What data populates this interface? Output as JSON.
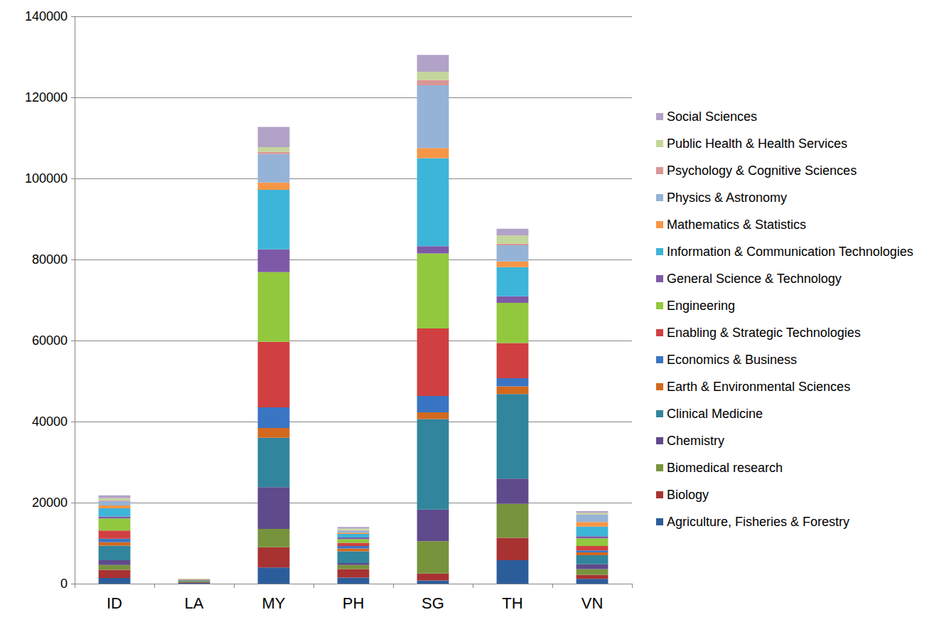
{
  "chart_data": {
    "type": "bar",
    "stacked": true,
    "grid": true,
    "legend": "right",
    "categories": [
      "ID",
      "LA",
      "MY",
      "PH",
      "SG",
      "TH",
      "VN"
    ],
    "ylim": [
      0,
      140000
    ],
    "yticks": [
      0,
      20000,
      40000,
      60000,
      80000,
      100000,
      120000,
      140000
    ],
    "series": [
      {
        "name": "Agriculture, Fisheries & Forestry",
        "color": "#2c5d9b",
        "values": [
          1400,
          200,
          4000,
          1500,
          800,
          5800,
          1200
        ]
      },
      {
        "name": "Biology",
        "color": "#a83232",
        "values": [
          2000,
          150,
          5000,
          2100,
          1700,
          5500,
          1000
        ]
      },
      {
        "name": "Biomedical research",
        "color": "#77933c",
        "values": [
          1200,
          200,
          4500,
          1000,
          8000,
          8400,
          1400
        ]
      },
      {
        "name": "Chemistry",
        "color": "#5f4a8b",
        "values": [
          1200,
          50,
          10300,
          500,
          7800,
          6200,
          1200
        ]
      },
      {
        "name": "Clinical Medicine",
        "color": "#31859c",
        "values": [
          3600,
          250,
          12200,
          2900,
          22300,
          20900,
          2200
        ]
      },
      {
        "name": "Earth & Environmental Sciences",
        "color": "#d2691e",
        "values": [
          800,
          50,
          2400,
          700,
          1700,
          1900,
          700
        ]
      },
      {
        "name": "Economics & Business",
        "color": "#3a75c4",
        "values": [
          900,
          50,
          5100,
          600,
          4000,
          2000,
          500
        ]
      },
      {
        "name": "Enabling & Strategic Technologies",
        "color": "#d04040",
        "values": [
          2000,
          50,
          16200,
          800,
          16700,
          8700,
          1100
        ]
      },
      {
        "name": "Engineering",
        "color": "#92c83e",
        "values": [
          3000,
          50,
          17200,
          900,
          18500,
          9900,
          1900
        ]
      },
      {
        "name": "General Science & Technology",
        "color": "#7e59a8",
        "values": [
          500,
          30,
          5600,
          400,
          1800,
          1600,
          500
        ]
      },
      {
        "name": "Information & Communication Technologies",
        "color": "#3db5d8",
        "values": [
          2000,
          30,
          14700,
          900,
          21700,
          7200,
          2400
        ]
      },
      {
        "name": "Mathematics & Statistics",
        "color": "#f79646",
        "values": [
          700,
          10,
          1800,
          300,
          2500,
          1400,
          1100
        ]
      },
      {
        "name": "Physics & Astronomy",
        "color": "#95b3d7",
        "values": [
          1100,
          20,
          7000,
          500,
          15500,
          4000,
          1800
        ]
      },
      {
        "name": "Psychology & Cognitive Sciences",
        "color": "#d99694",
        "values": [
          200,
          10,
          600,
          100,
          1300,
          400,
          100
        ]
      },
      {
        "name": "Public Health & Health Services",
        "color": "#c3d69b",
        "values": [
          500,
          30,
          1100,
          400,
          2000,
          2000,
          400
        ]
      },
      {
        "name": "Social Sciences",
        "color": "#b2a2c7",
        "values": [
          700,
          20,
          5000,
          400,
          4200,
          1700,
          400
        ]
      }
    ]
  }
}
